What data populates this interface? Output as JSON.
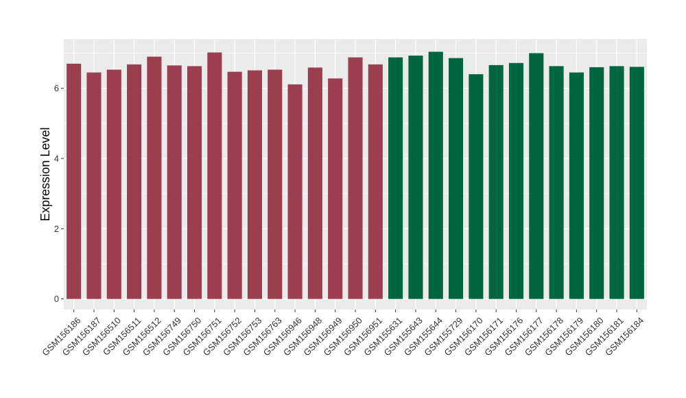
{
  "chart_data": {
    "type": "bar",
    "title": "",
    "xlabel": "",
    "ylabel": "Expression Level",
    "ylim": [
      -0.3,
      7.4
    ],
    "yticks": [
      0,
      2,
      4,
      6
    ],
    "grid": true,
    "legend": "none",
    "categories": [
      "GSM156186",
      "GSM156187",
      "GSM156510",
      "GSM156511",
      "GSM156512",
      "GSM156749",
      "GSM156750",
      "GSM156751",
      "GSM156752",
      "GSM156753",
      "GSM156763",
      "GSM156946",
      "GSM156948",
      "GSM156949",
      "GSM156950",
      "GSM156951",
      "GSM155631",
      "GSM155643",
      "GSM155644",
      "GSM155729",
      "GSM156170",
      "GSM156171",
      "GSM156176",
      "GSM156177",
      "GSM156178",
      "GSM156179",
      "GSM156180",
      "GSM156181",
      "GSM156184"
    ],
    "values": [
      6.7,
      6.45,
      6.53,
      6.68,
      6.9,
      6.65,
      6.63,
      7.02,
      6.47,
      6.51,
      6.53,
      6.11,
      6.59,
      6.28,
      6.88,
      6.68,
      6.88,
      6.93,
      7.04,
      6.86,
      6.4,
      6.66,
      6.72,
      7.0,
      6.63,
      6.45,
      6.6,
      6.63,
      6.61
    ],
    "groups": [
      0,
      0,
      0,
      0,
      0,
      0,
      0,
      0,
      0,
      0,
      0,
      0,
      0,
      0,
      0,
      0,
      1,
      1,
      1,
      1,
      1,
      1,
      1,
      1,
      1,
      1,
      1,
      1,
      1
    ],
    "colors": [
      "#9b3f50",
      "#006640"
    ],
    "panel_background": "#ebebeb",
    "grid_color": "#ffffff"
  }
}
